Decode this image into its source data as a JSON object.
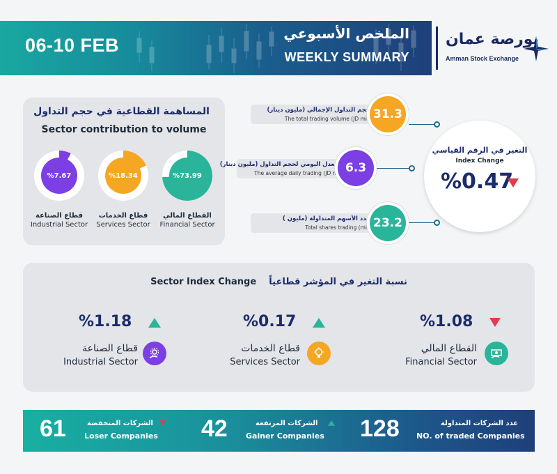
{
  "header": {
    "date": "06-10 FEB",
    "title_ar": "الملخص الأسبوعي",
    "title_en": "WEEKLY SUMMARY",
    "logo_ar": "بورصة عمان",
    "logo_en": "Amman Stock Exchange",
    "logo_icon": "compass-star-icon"
  },
  "contribution": {
    "title_ar": "المساهمة القطاعية في حجم التداول",
    "title_en": "Sector contribution to volume",
    "sectors": [
      {
        "label_ar": "القطاع المالي",
        "label_en": "Financial Sector",
        "value_text": "%73.99",
        "percent": 73.99,
        "color": "#2ab59a"
      },
      {
        "label_ar": "قطاع الخدمات",
        "label_en": "Services Sector",
        "value_text": "%18.34",
        "percent": 18.34,
        "color": "#f5a623"
      },
      {
        "label_ar": "قطاع الصناعة",
        "label_en": "Industrial Sector",
        "value_text": "%7.67",
        "percent": 7.67,
        "color": "#7b3fe4"
      }
    ]
  },
  "stats": [
    {
      "label_ar": "حجم التداول الإجمالي (مليون دينار)",
      "label_en": "The total trading volume (JD mil)",
      "value": "31.3",
      "color": "#f5a623"
    },
    {
      "label_ar": "المعدل اليومي لحجم التداول (مليون دينار)",
      "label_en": "The average daily trading (JD mil)",
      "value": "6.3",
      "color": "#7b3fe4"
    },
    {
      "label_ar": "عدد الأسهم المتداولة (مليون )",
      "label_en": "Total shares trading (mil)",
      "value": "23.2",
      "color": "#2ab59a"
    }
  ],
  "index_change": {
    "label_ar": "التغير في الرقم القياسي",
    "label_en": "Index Change",
    "value": "%0.47",
    "direction": "down",
    "color_down": "#e23a4e"
  },
  "sector_index": {
    "title_en": "Sector Index Change",
    "title_ar": "نسبة التغير في المؤشر قطاعياً",
    "items": [
      {
        "value": "%1.08",
        "direction": "down",
        "label_ar": "القطاع المالي",
        "label_en": "Financial Sector",
        "icon": "money-hand-icon",
        "color": "#2ab59a"
      },
      {
        "value": "%0.17",
        "direction": "up",
        "label_ar": "قطاع الخدمات",
        "label_en": "Services Sector",
        "icon": "lightbulb-icon",
        "color": "#f5a623"
      },
      {
        "value": "%1.18",
        "direction": "up",
        "label_ar": "قطاع الصناعة",
        "label_en": "Industrial Sector",
        "icon": "gear-hand-icon",
        "color": "#7b3fe4"
      }
    ]
  },
  "footer": {
    "traded": {
      "value": "128",
      "label_ar": "عدد الشركات المتداولة",
      "label_en": "NO. of traded Companies"
    },
    "gainers": {
      "value": "42",
      "label_ar": "الشركات المرتفعة",
      "label_en": "Gainer Companies"
    },
    "losers": {
      "value": "61",
      "label_ar": "الشركات المنخفضة",
      "label_en": "Loser Companies"
    }
  }
}
